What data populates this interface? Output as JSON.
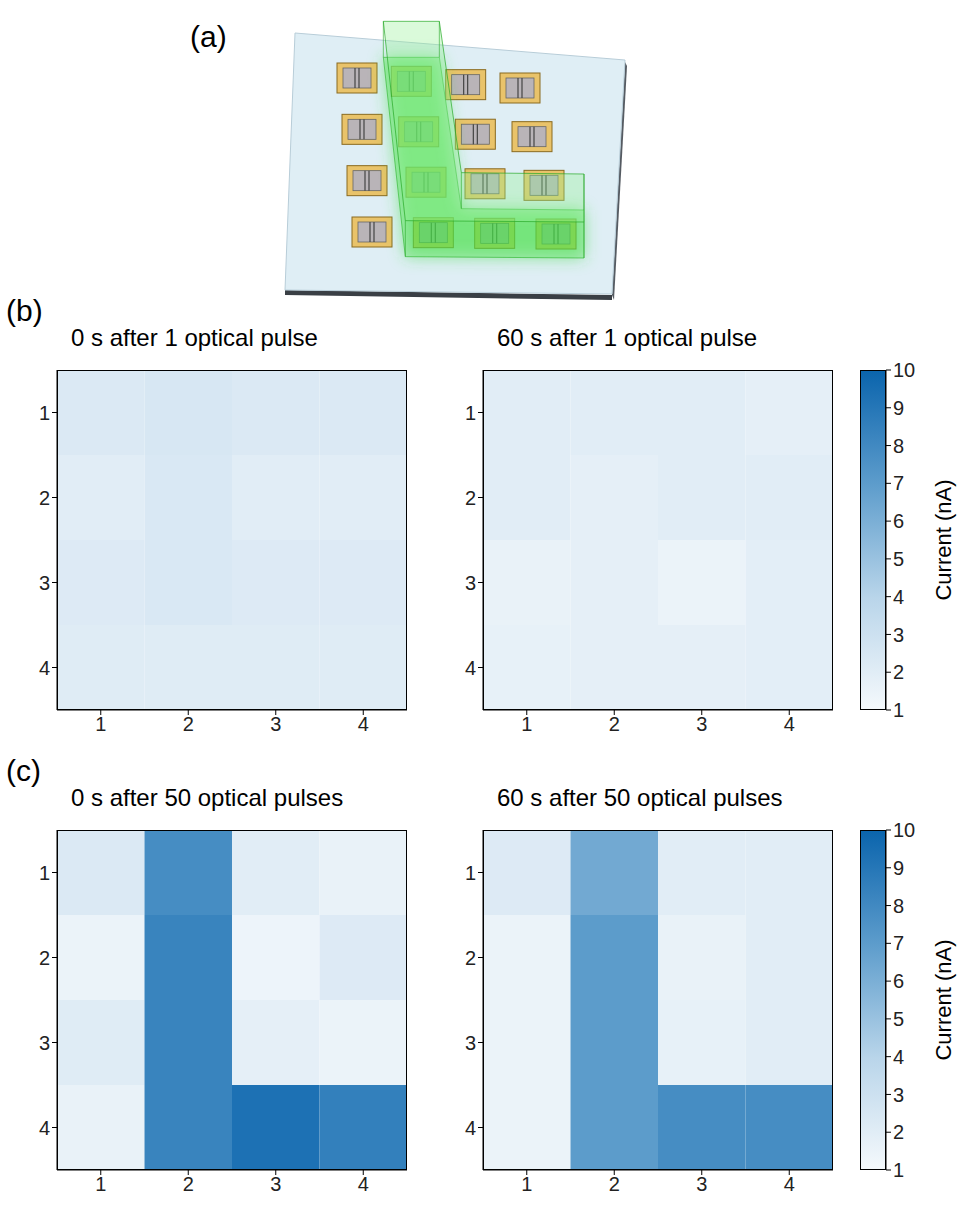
{
  "diagram": {
    "label": "(a)"
  },
  "chart_data": [
    {
      "type": "heatmap",
      "label": "(b)",
      "x": [
        1,
        2,
        3,
        4
      ],
      "y": [
        1,
        2,
        3,
        4
      ],
      "xlim": [
        0.5,
        4.5
      ],
      "ylim": [
        0.5,
        4.5
      ],
      "xticks": [
        1,
        2,
        3,
        4
      ],
      "yticks": [
        1,
        2,
        3,
        4
      ],
      "colorbar": {
        "label": "Current (nA)",
        "range": [
          1,
          10
        ],
        "ticks": [
          1,
          2,
          3,
          4,
          5,
          6,
          7,
          8,
          9,
          10
        ]
      },
      "panels": [
        {
          "title": "0 s after 1 optical pulse",
          "cells": [
            [
              2.3,
              2.5,
              2.3,
              2.3
            ],
            [
              2.0,
              2.4,
              2.0,
              2.0
            ],
            [
              2.2,
              2.4,
              2.2,
              2.2
            ],
            [
              2.1,
              2.1,
              2.1,
              2.1
            ]
          ]
        },
        {
          "title": "60 s after 1 optical pulse",
          "cells": [
            [
              2.0,
              2.0,
              2.0,
              1.8
            ],
            [
              2.0,
              1.8,
              2.0,
              2.0
            ],
            [
              1.6,
              1.8,
              1.5,
              1.9
            ],
            [
              1.7,
              1.8,
              1.8,
              1.9
            ]
          ]
        }
      ]
    },
    {
      "type": "heatmap",
      "label": "(c)",
      "x": [
        1,
        2,
        3,
        4
      ],
      "y": [
        1,
        2,
        3,
        4
      ],
      "xlim": [
        0.5,
        4.5
      ],
      "ylim": [
        0.5,
        4.5
      ],
      "xticks": [
        1,
        2,
        3,
        4
      ],
      "yticks": [
        1,
        2,
        3,
        4
      ],
      "colorbar": {
        "label": "Current (nA)",
        "range": [
          1,
          10
        ],
        "ticks": [
          1,
          2,
          3,
          4,
          5,
          6,
          7,
          8,
          9,
          10
        ]
      },
      "panels": [
        {
          "title": "0 s after 50 optical pulses",
          "cells": [
            [
              2.3,
              7.8,
              2.0,
              1.6
            ],
            [
              1.5,
              8.3,
              1.4,
              2.2
            ],
            [
              2.1,
              8.3,
              1.8,
              1.5
            ],
            [
              1.6,
              8.3,
              9.3,
              8.5
            ]
          ]
        },
        {
          "title": "60 s after 50 optical pulses",
          "cells": [
            [
              2.2,
              6.3,
              2.0,
              2.0
            ],
            [
              1.5,
              7.0,
              1.6,
              2.0
            ],
            [
              1.5,
              7.0,
              1.7,
              2.0
            ],
            [
              1.5,
              7.0,
              7.8,
              7.8
            ]
          ]
        }
      ]
    }
  ]
}
